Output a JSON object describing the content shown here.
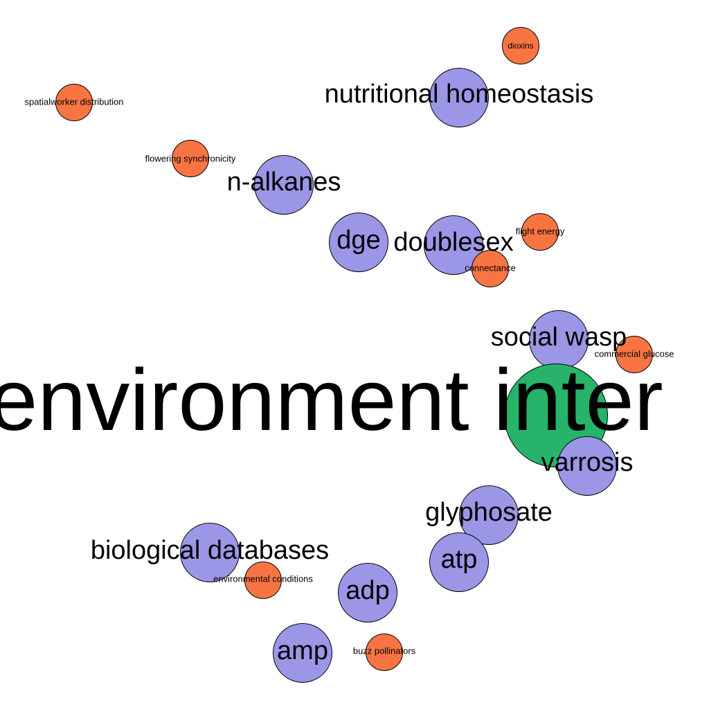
{
  "colors": {
    "background": "#ffffff",
    "topic": "#9b96e6",
    "keyword": "#f87543",
    "central": "#27b36a",
    "outline": "#000000",
    "text": "#000000"
  },
  "nodes": [
    {
      "id": "dioxins",
      "label": "dioxins",
      "kind": "keyword"
    },
    {
      "id": "nutritional-homeostasis",
      "label": "nutritional homeostasis",
      "kind": "topic"
    },
    {
      "id": "spatialworker-distribution",
      "label": "spatialworker distribution",
      "kind": "keyword"
    },
    {
      "id": "flowering-synchronicity",
      "label": "flowering synchronicity",
      "kind": "keyword"
    },
    {
      "id": "n-alkanes",
      "label": "n-alkanes",
      "kind": "topic"
    },
    {
      "id": "dge",
      "label": "dge",
      "kind": "topic"
    },
    {
      "id": "doublesex",
      "label": "doublesex",
      "kind": "topic"
    },
    {
      "id": "flight-energy",
      "label": "flight energy",
      "kind": "keyword"
    },
    {
      "id": "connectance",
      "label": "connectance",
      "kind": "keyword"
    },
    {
      "id": "social-wasp",
      "label": "social wasp",
      "kind": "topic"
    },
    {
      "id": "commercial-glucose",
      "label": "commercial glucose",
      "kind": "keyword"
    },
    {
      "id": "central-term",
      "label": "-environment inter",
      "kind": "central"
    },
    {
      "id": "varrosis",
      "label": "varrosis",
      "kind": "topic"
    },
    {
      "id": "glyphosate",
      "label": "glyphosate",
      "kind": "topic"
    },
    {
      "id": "atp",
      "label": "atp",
      "kind": "topic"
    },
    {
      "id": "biological-databases",
      "label": "biological databases",
      "kind": "topic"
    },
    {
      "id": "environmental-conditions",
      "label": "environmental conditions",
      "kind": "keyword"
    },
    {
      "id": "adp",
      "label": "adp",
      "kind": "topic"
    },
    {
      "id": "amp",
      "label": "amp",
      "kind": "topic"
    },
    {
      "id": "buzz-pollinators",
      "label": "buzz pollinators",
      "kind": "keyword"
    }
  ]
}
